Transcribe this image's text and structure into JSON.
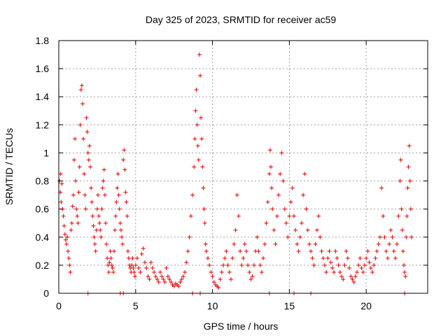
{
  "chart_data": {
    "type": "scatter",
    "title": "Day 325 of 2023, SRMTID for receiver ac59",
    "xlabel": "GPS time / hours",
    "ylabel": "SRMTID / TECUs",
    "xlim": [
      0,
      24
    ],
    "ylim": [
      0,
      1.8
    ],
    "x_ticks": [
      0,
      5,
      10,
      15,
      20
    ],
    "x_tick_labels": [
      "0",
      "5",
      "10",
      "15",
      "20"
    ],
    "y_ticks": [
      0,
      0.2,
      0.4,
      0.6,
      0.8,
      1.0,
      1.2,
      1.4,
      1.6,
      1.8
    ],
    "y_tick_labels": [
      "0",
      "0.2",
      "0.4",
      "0.6",
      "0.8",
      "1",
      "1.2",
      "1.4",
      "1.6",
      "1.8"
    ],
    "grid": true,
    "marker": "+",
    "series": [
      {
        "name": "SRMTID",
        "color": "#e00000",
        "points": [
          [
            0.05,
            0.8
          ],
          [
            0.1,
            0.72
          ],
          [
            0.12,
            0.85
          ],
          [
            0.15,
            0.65
          ],
          [
            0.2,
            0.78
          ],
          [
            0.25,
            0.6
          ],
          [
            0.3,
            0.55
          ],
          [
            0.35,
            0.48
          ],
          [
            0.4,
            0.42
          ],
          [
            0.45,
            0.38
          ],
          [
            0.5,
            0.35
          ],
          [
            0.55,
            0.4
          ],
          [
            0.6,
            0.3
          ],
          [
            0.65,
            0.25
          ],
          [
            0.7,
            0.2
          ],
          [
            0.75,
            0.15
          ],
          [
            0.8,
            0.45
          ],
          [
            0.85,
            0.5
          ],
          [
            0.9,
            0.62
          ],
          [
            0.95,
            0.7
          ],
          [
            1.0,
            0.95
          ],
          [
            1.05,
            1.1
          ],
          [
            1.1,
            0.8
          ],
          [
            1.15,
            0.6
          ],
          [
            1.2,
            0.55
          ],
          [
            1.25,
            0.5
          ],
          [
            1.3,
            0.72
          ],
          [
            1.35,
            0.9
          ],
          [
            1.4,
            1.2
          ],
          [
            1.45,
            1.45
          ],
          [
            1.5,
            1.48
          ],
          [
            1.55,
            1.35
          ],
          [
            1.6,
            1.1
          ],
          [
            1.65,
            0.85
          ],
          [
            1.7,
            0.7
          ],
          [
            1.75,
            0.6
          ],
          [
            1.8,
            1.25
          ],
          [
            1.85,
            1.15
          ],
          [
            1.9,
            1.0
          ],
          [
            1.95,
            0.95
          ],
          [
            2.0,
            1.05
          ],
          [
            2.05,
            0.9
          ],
          [
            2.1,
            0.75
          ],
          [
            2.15,
            0.65
          ],
          [
            2.2,
            0.55
          ],
          [
            2.25,
            0.48
          ],
          [
            2.3,
            0.4
          ],
          [
            2.35,
            0.35
          ],
          [
            2.4,
            0.3
          ],
          [
            2.45,
            0.45
          ],
          [
            2.5,
            0.6
          ],
          [
            2.55,
            0.7
          ],
          [
            2.6,
            0.55
          ],
          [
            2.65,
            0.5
          ],
          [
            2.7,
            0.45
          ],
          [
            2.75,
            0.4
          ],
          [
            2.8,
            0.6
          ],
          [
            2.85,
            0.75
          ],
          [
            2.9,
            0.8
          ],
          [
            2.95,
            0.88
          ],
          [
            3.0,
            0.7
          ],
          [
            3.05,
            0.5
          ],
          [
            3.1,
            0.35
          ],
          [
            3.15,
            0.25
          ],
          [
            3.2,
            0.2
          ],
          [
            3.25,
            0.15
          ],
          [
            3.3,
            0.22
          ],
          [
            3.35,
            0.3
          ],
          [
            3.4,
            0.25
          ],
          [
            3.45,
            0.2
          ],
          [
            3.5,
            0.18
          ],
          [
            3.55,
            0.15
          ],
          [
            3.6,
            0.3
          ],
          [
            3.65,
            0.45
          ],
          [
            3.7,
            0.55
          ],
          [
            3.75,
            0.65
          ],
          [
            3.8,
            0.75
          ],
          [
            3.85,
            0.85
          ],
          [
            3.9,
            0.7
          ],
          [
            3.95,
            0.6
          ],
          [
            4.0,
            0.5
          ],
          [
            4.05,
            0.45
          ],
          [
            4.1,
            0.4
          ],
          [
            4.15,
            0.35
          ],
          [
            4.2,
            0.95
          ],
          [
            4.25,
            1.02
          ],
          [
            4.3,
            0.88
          ],
          [
            4.35,
            0.72
          ],
          [
            4.4,
            0.65
          ],
          [
            4.45,
            0.55
          ],
          [
            4.5,
            0.3
          ],
          [
            4.55,
            0.25
          ],
          [
            4.6,
            0.2
          ],
          [
            4.65,
            0.18
          ],
          [
            4.7,
            0.15
          ],
          [
            4.75,
            0.2
          ],
          [
            4.8,
            0.25
          ],
          [
            4.85,
            0.18
          ],
          [
            4.9,
            0.15
          ],
          [
            4.95,
            0.12
          ],
          [
            5.0,
            0.2
          ],
          [
            5.1,
            0.25
          ],
          [
            5.2,
            0.18
          ],
          [
            5.3,
            0.15
          ],
          [
            5.4,
            0.28
          ],
          [
            5.5,
            0.32
          ],
          [
            5.6,
            0.22
          ],
          [
            5.7,
            0.18
          ],
          [
            5.8,
            0.12
          ],
          [
            5.9,
            0.1
          ],
          [
            6.0,
            0.22
          ],
          [
            6.1,
            0.18
          ],
          [
            6.2,
            0.15
          ],
          [
            6.3,
            0.12
          ],
          [
            6.4,
            0.1
          ],
          [
            6.5,
            0.08
          ],
          [
            6.6,
            0.15
          ],
          [
            6.7,
            0.12
          ],
          [
            6.8,
            0.1
          ],
          [
            6.9,
            0.08
          ],
          [
            7.0,
            0.18
          ],
          [
            7.1,
            0.12
          ],
          [
            7.2,
            0.1
          ],
          [
            7.3,
            0.08
          ],
          [
            7.4,
            0.06
          ],
          [
            7.5,
            0.05
          ],
          [
            7.6,
            0.07
          ],
          [
            7.7,
            0.06
          ],
          [
            7.8,
            0.05
          ],
          [
            7.9,
            0.08
          ],
          [
            8.0,
            0.1
          ],
          [
            8.1,
            0.12
          ],
          [
            8.2,
            0.15
          ],
          [
            8.3,
            0.22
          ],
          [
            8.4,
            0.3
          ],
          [
            8.5,
            0.4
          ],
          [
            8.6,
            0.55
          ],
          [
            8.7,
            0.7
          ],
          [
            8.8,
            0.9
          ],
          [
            8.85,
            1.1
          ],
          [
            8.9,
            1.3
          ],
          [
            8.95,
            1.45
          ],
          [
            9.0,
            1.2
          ],
          [
            9.05,
            1.05
          ],
          [
            9.1,
            0.95
          ],
          [
            9.15,
            1.7
          ],
          [
            9.2,
            1.55
          ],
          [
            9.25,
            1.25
          ],
          [
            9.3,
            1.1
          ],
          [
            9.35,
            0.9
          ],
          [
            9.4,
            0.75
          ],
          [
            9.45,
            0.6
          ],
          [
            9.5,
            0.5
          ],
          [
            9.55,
            0.35
          ],
          [
            9.6,
            0.3
          ],
          [
            9.7,
            0.25
          ],
          [
            9.8,
            0.2
          ],
          [
            9.9,
            0.15
          ],
          [
            10.0,
            0.12
          ],
          [
            10.1,
            0.08
          ],
          [
            10.2,
            0.06
          ],
          [
            10.3,
            0.05
          ],
          [
            10.4,
            0.04
          ],
          [
            10.5,
            0.1
          ],
          [
            10.6,
            0.15
          ],
          [
            10.7,
            0.2
          ],
          [
            10.8,
            0.25
          ],
          [
            10.9,
            0.3
          ],
          [
            11.0,
            0.2
          ],
          [
            11.1,
            0.15
          ],
          [
            11.2,
            0.1
          ],
          [
            11.3,
            0.25
          ],
          [
            11.4,
            0.35
          ],
          [
            11.5,
            0.45
          ],
          [
            11.6,
            0.7
          ],
          [
            11.7,
            0.55
          ],
          [
            11.8,
            0.3
          ],
          [
            11.9,
            0.2
          ],
          [
            12.0,
            0.25
          ],
          [
            12.1,
            0.35
          ],
          [
            12.2,
            0.3
          ],
          [
            12.3,
            0.2
          ],
          [
            12.4,
            0.15
          ],
          [
            12.5,
            0.1
          ],
          [
            12.6,
            0.12
          ],
          [
            12.7,
            0.2
          ],
          [
            12.8,
            0.3
          ],
          [
            12.9,
            0.4
          ],
          [
            13.0,
            0.3
          ],
          [
            13.1,
            0.2
          ],
          [
            13.2,
            0.15
          ],
          [
            13.3,
            0.25
          ],
          [
            13.4,
            0.35
          ],
          [
            13.5,
            0.5
          ],
          [
            13.6,
            0.65
          ],
          [
            13.7,
            0.85
          ],
          [
            13.75,
            1.02
          ],
          [
            13.8,
            0.9
          ],
          [
            13.85,
            0.75
          ],
          [
            13.9,
            0.6
          ],
          [
            14.0,
            0.45
          ],
          [
            14.1,
            0.35
          ],
          [
            14.2,
            0.55
          ],
          [
            14.3,
            0.7
          ],
          [
            14.4,
            0.85
          ],
          [
            14.5,
            1.0
          ],
          [
            14.6,
            0.8
          ],
          [
            14.7,
            0.6
          ],
          [
            14.8,
            0.5
          ],
          [
            14.9,
            0.4
          ],
          [
            15.0,
            0.55
          ],
          [
            15.1,
            0.65
          ],
          [
            15.2,
            0.75
          ],
          [
            15.3,
            0.55
          ],
          [
            15.4,
            0.45
          ],
          [
            15.5,
            0.35
          ],
          [
            15.6,
            0.3
          ],
          [
            15.7,
            0.4
          ],
          [
            15.8,
            0.5
          ],
          [
            15.9,
            0.7
          ],
          [
            16.0,
            0.85
          ],
          [
            16.1,
            0.6
          ],
          [
            16.2,
            0.45
          ],
          [
            16.3,
            0.35
          ],
          [
            16.4,
            0.3
          ],
          [
            16.5,
            0.25
          ],
          [
            16.6,
            0.2
          ],
          [
            16.7,
            0.35
          ],
          [
            16.8,
            0.45
          ],
          [
            16.9,
            0.55
          ],
          [
            17.0,
            0.4
          ],
          [
            17.1,
            0.3
          ],
          [
            17.2,
            0.25
          ],
          [
            17.3,
            0.2
          ],
          [
            17.4,
            0.15
          ],
          [
            17.5,
            0.25
          ],
          [
            17.6,
            0.3
          ],
          [
            17.7,
            0.22
          ],
          [
            17.8,
            0.18
          ],
          [
            17.9,
            0.15
          ],
          [
            18.0,
            0.3
          ],
          [
            18.1,
            0.25
          ],
          [
            18.2,
            0.2
          ],
          [
            18.3,
            0.15
          ],
          [
            18.4,
            0.12
          ],
          [
            18.5,
            0.1
          ],
          [
            18.6,
            0.2
          ],
          [
            18.7,
            0.3
          ],
          [
            18.8,
            0.25
          ],
          [
            18.9,
            0.18
          ],
          [
            19.0,
            0.12
          ],
          [
            19.1,
            0.1
          ],
          [
            19.2,
            0.08
          ],
          [
            19.3,
            0.12
          ],
          [
            19.4,
            0.15
          ],
          [
            19.5,
            0.2
          ],
          [
            19.6,
            0.25
          ],
          [
            19.7,
            0.18
          ],
          [
            19.8,
            0.15
          ],
          [
            19.9,
            0.2
          ],
          [
            20.0,
            0.25
          ],
          [
            20.1,
            0.3
          ],
          [
            20.2,
            0.22
          ],
          [
            20.3,
            0.18
          ],
          [
            20.4,
            0.15
          ],
          [
            20.5,
            0.2
          ],
          [
            20.6,
            0.25
          ],
          [
            20.7,
            0.3
          ],
          [
            20.8,
            0.35
          ],
          [
            20.9,
            0.4
          ],
          [
            21.0,
            0.75
          ],
          [
            21.1,
            0.55
          ],
          [
            21.2,
            0.4
          ],
          [
            21.3,
            0.3
          ],
          [
            21.4,
            0.25
          ],
          [
            21.5,
            0.35
          ],
          [
            21.6,
            0.45
          ],
          [
            21.7,
            0.4
          ],
          [
            21.8,
            0.3
          ],
          [
            21.9,
            0.25
          ],
          [
            22.0,
            0.35
          ],
          [
            22.1,
            0.55
          ],
          [
            22.2,
            0.8
          ],
          [
            22.25,
            0.95
          ],
          [
            22.3,
            0.6
          ],
          [
            22.35,
            0.45
          ],
          [
            22.4,
            0.3
          ],
          [
            22.45,
            0.2
          ],
          [
            22.5,
            0.15
          ],
          [
            22.55,
            0.12
          ],
          [
            22.6,
            0.4
          ],
          [
            22.65,
            0.55
          ],
          [
            22.7,
            0.75
          ],
          [
            22.75,
            0.9
          ],
          [
            22.8,
            1.05
          ],
          [
            22.85,
            0.8
          ],
          [
            22.9,
            0.6
          ],
          [
            22.95,
            0.4
          ]
        ]
      }
    ],
    "zero_markers": [
      1.9,
      4.0,
      4.2,
      8.7,
      9.2,
      13.7,
      15.3,
      16.4,
      22.5
    ]
  }
}
